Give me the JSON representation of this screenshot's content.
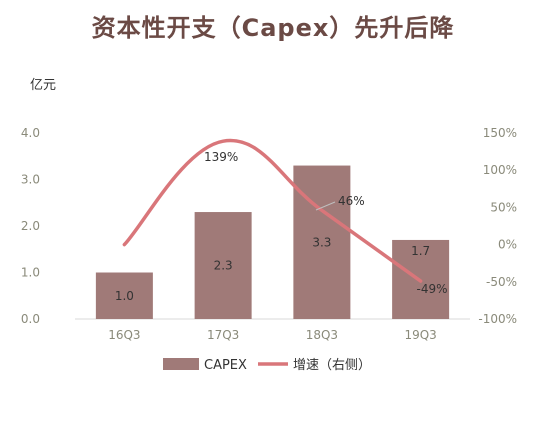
{
  "chart_data": {
    "type": "bar",
    "title": "资本性开支（Capex）先升后降",
    "ylabel": "亿元",
    "categories": [
      "16Q3",
      "17Q3",
      "18Q3",
      "19Q3"
    ],
    "ylim": [
      0,
      4.0
    ],
    "y_ticks": [
      "0.0",
      "1.0",
      "2.0",
      "3.0",
      "4.0"
    ],
    "y2lim": [
      -100,
      150
    ],
    "y2_ticks": [
      "-100%",
      "-50%",
      "0%",
      "50%",
      "100%",
      "150%"
    ],
    "grid": false,
    "legend": "bottom",
    "series": [
      {
        "name": "CAPEX",
        "type": "bar",
        "axis": "left",
        "values": [
          1.0,
          2.3,
          3.3,
          1.7
        ],
        "labels": [
          "1.0",
          "2.3",
          "3.3",
          "1.7"
        ],
        "color": "#a07a78"
      },
      {
        "name": "增速（右侧）",
        "type": "line",
        "axis": "right",
        "values": [
          0,
          139,
          46,
          -49
        ],
        "labels": [
          "",
          "139%",
          "46%",
          "-49%"
        ],
        "color": "#d9767a"
      }
    ]
  }
}
